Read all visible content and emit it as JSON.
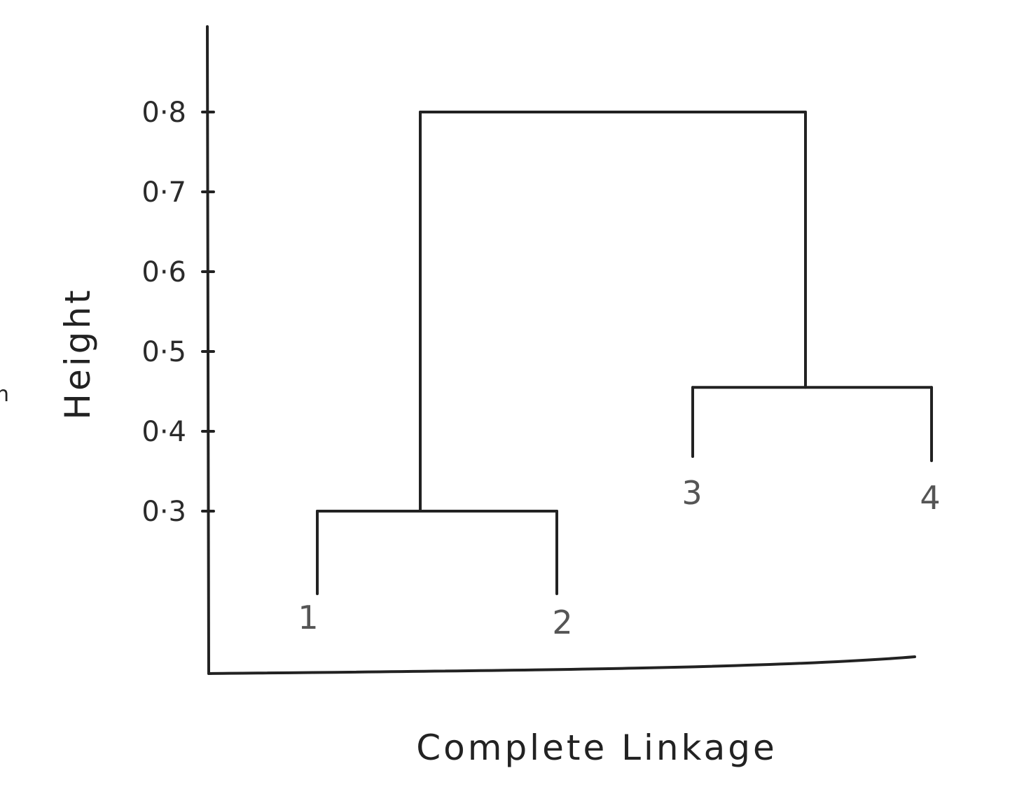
{
  "chart_data": {
    "type": "dendrogram",
    "ylabel": "Height",
    "xlabel": "Complete Linkage",
    "ylim": [
      0.3,
      0.8
    ],
    "y_ticks": [
      {
        "value": 0.8,
        "label": "0·8"
      },
      {
        "value": 0.7,
        "label": "0·7"
      },
      {
        "value": 0.6,
        "label": "0·6"
      },
      {
        "value": 0.5,
        "label": "0·5"
      },
      {
        "value": 0.4,
        "label": "0·4"
      },
      {
        "value": 0.3,
        "label": "0·3"
      }
    ],
    "leaves": [
      "1",
      "2",
      "3",
      "4"
    ],
    "merges": [
      {
        "id": "c12",
        "left": "1",
        "right": "2",
        "height": 0.3
      },
      {
        "id": "c34",
        "left": "3",
        "right": "4",
        "height": 0.455
      },
      {
        "id": "root",
        "left": "c12",
        "right": "c34",
        "height": 0.8
      }
    ]
  },
  "page_edge_mark": "n"
}
